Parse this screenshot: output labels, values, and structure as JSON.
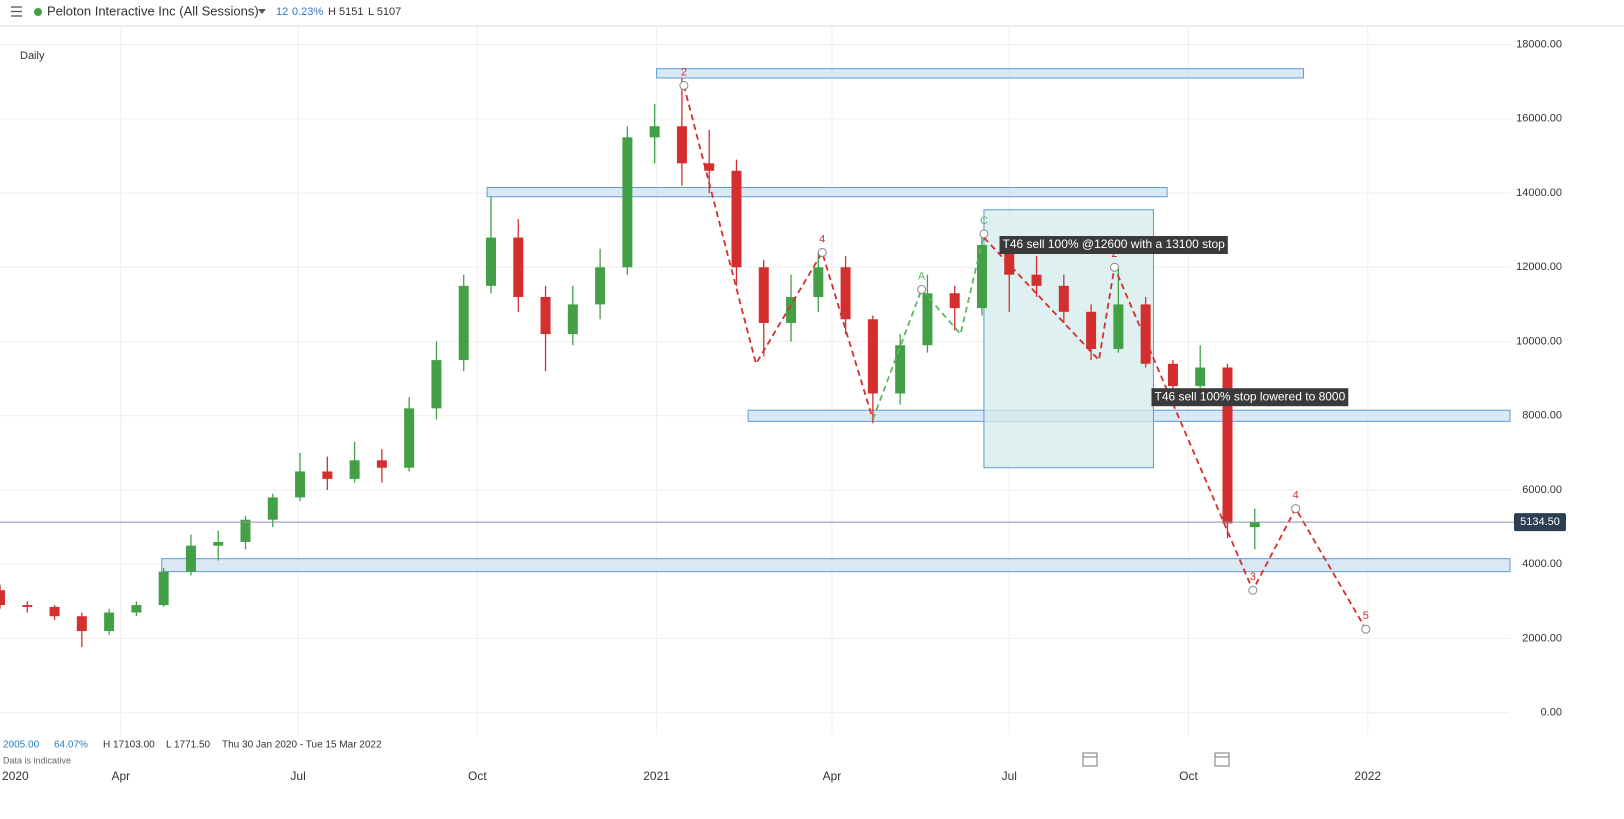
{
  "chart_data": {
    "type": "candlestick",
    "title": "Peloton Interactive Inc (All Sessions)",
    "header_stats": {
      "change": "12",
      "change_pct": "0.23%",
      "high": "H 5151",
      "low": "L 5107"
    },
    "interval": "Daily",
    "footer_stats": {
      "change": "2005.00",
      "change_pct": "64.07%",
      "high": "H 17103.00",
      "low": "L 1771.50",
      "range": "Thu 30 Jan 2020 - Tue 15 Mar 2022"
    },
    "disclaimer": "Data is indicative",
    "x": [
      "2020-01-30",
      "2020-02-13",
      "2020-02-27",
      "2020-03-12",
      "2020-03-26",
      "2020-04-09",
      "2020-04-23",
      "2020-05-07",
      "2020-05-21",
      "2020-06-04",
      "2020-06-18",
      "2020-07-02",
      "2020-07-16",
      "2020-07-30",
      "2020-08-13",
      "2020-08-27",
      "2020-09-10",
      "2020-09-24",
      "2020-10-08",
      "2020-10-22",
      "2020-11-05",
      "2020-11-19",
      "2020-12-03",
      "2020-12-17",
      "2020-12-31",
      "2021-01-14",
      "2021-01-28",
      "2021-02-11",
      "2021-02-25",
      "2021-03-11",
      "2021-03-25",
      "2021-04-08",
      "2021-04-22",
      "2021-05-06",
      "2021-05-20",
      "2021-06-03",
      "2021-06-17",
      "2021-07-01",
      "2021-07-15",
      "2021-07-29",
      "2021-08-12",
      "2021-08-26",
      "2021-09-09",
      "2021-09-23",
      "2021-10-07",
      "2021-10-21",
      "2021-11-04"
    ],
    "open": [
      3300,
      2900,
      2850,
      2600,
      2200,
      2700,
      2900,
      3800,
      4500,
      4600,
      5200,
      5800,
      6500,
      6300,
      6800,
      6600,
      8200,
      9500,
      11500,
      12800,
      11200,
      10200,
      11000,
      12000,
      15500,
      15800,
      14800,
      14600,
      12000,
      10500,
      11200,
      12000,
      10600,
      8600,
      9900,
      11300,
      10900,
      12600,
      11800,
      11500,
      10800,
      9800,
      11000,
      9400,
      8800,
      9300,
      5000
    ],
    "high": [
      3450,
      3000,
      2900,
      2700,
      2800,
      3000,
      3900,
      4800,
      4900,
      5300,
      5900,
      7000,
      6900,
      7300,
      7100,
      8500,
      10000,
      11800,
      13900,
      13300,
      11500,
      11500,
      12500,
      15800,
      16400,
      17100,
      15700,
      14900,
      12200,
      11800,
      12400,
      12300,
      10700,
      10200,
      11800,
      11500,
      12900,
      12700,
      12300,
      11800,
      11000,
      12000,
      11200,
      9500,
      9900,
      9400,
      5500
    ],
    "low": [
      2800,
      2700,
      2500,
      1770,
      2100,
      2600,
      2850,
      3700,
      4100,
      4400,
      5000,
      5700,
      6000,
      6200,
      6200,
      6500,
      7900,
      9200,
      11300,
      10800,
      9200,
      9900,
      10600,
      11800,
      14800,
      14200,
      14000,
      11500,
      9600,
      10000,
      10800,
      10200,
      7800,
      8300,
      9700,
      10300,
      10700,
      10800,
      11200,
      10500,
      9500,
      9700,
      9300,
      8300,
      8700,
      4700,
      4400
    ],
    "close": [
      2900,
      2850,
      2600,
      2200,
      2700,
      2900,
      3800,
      4500,
      4600,
      5200,
      5800,
      6500,
      6300,
      6800,
      6600,
      8200,
      9500,
      11500,
      12800,
      11200,
      10200,
      11000,
      12000,
      15500,
      15800,
      14800,
      14600,
      12000,
      10500,
      11200,
      12000,
      10600,
      8600,
      9900,
      11300,
      10900,
      12600,
      11800,
      11500,
      10800,
      9800,
      11000,
      9400,
      8800,
      9300,
      5100,
      5134.5
    ],
    "up_color": "#43a047",
    "down_color": "#d32f2f",
    "last_price": {
      "value": 5134.5,
      "label": "5134.50"
    },
    "xlim": [
      "2020-01-30",
      "2022-03-15"
    ],
    "xticks": [
      {
        "value": "2020-01-01",
        "label": "2020"
      },
      {
        "value": "2020-04-01",
        "label": "Apr"
      },
      {
        "value": "2020-07-01",
        "label": "Jul"
      },
      {
        "value": "2020-10-01",
        "label": "Oct"
      },
      {
        "value": "2021-01-01",
        "label": "2021"
      },
      {
        "value": "2021-04-01",
        "label": "Apr"
      },
      {
        "value": "2021-07-01",
        "label": "Jul"
      },
      {
        "value": "2021-10-01",
        "label": "Oct"
      },
      {
        "value": "2022-01-01",
        "label": "2022"
      }
    ],
    "ylim": [
      -600,
      18500
    ],
    "yticks": [
      {
        "value": 0,
        "label": "0.00"
      },
      {
        "value": 2000,
        "label": "2000.00"
      },
      {
        "value": 4000,
        "label": "4000.00"
      },
      {
        "value": 6000,
        "label": "6000.00"
      },
      {
        "value": 8000,
        "label": "8000.00"
      },
      {
        "value": 10000,
        "label": "10000.00"
      },
      {
        "value": 12000,
        "label": "12000.00"
      },
      {
        "value": 14000,
        "label": "14000.00"
      },
      {
        "value": 16000,
        "label": "16000.00"
      },
      {
        "value": 18000,
        "label": "18000.00"
      }
    ],
    "grid": true,
    "zones": [
      {
        "from": "2021-01-01",
        "to": "2021-11-29",
        "low": 17100,
        "high": 17350,
        "color": "#cfe2f3"
      },
      {
        "from": "2020-10-06",
        "to": "2021-09-20",
        "low": 13900,
        "high": 14150,
        "color": "#cfe2f3"
      },
      {
        "from": "2021-02-17",
        "to": "2022-03-15",
        "low": 7850,
        "high": 8150,
        "color": "#cfe2f3"
      },
      {
        "from": "2020-04-22",
        "to": "2022-03-15",
        "low": 3800,
        "high": 4150,
        "color": "#cfe2f3"
      },
      {
        "from": "2021-06-18",
        "to": "2021-09-13",
        "low": 6600,
        "high": 13550,
        "color": "#d3ebea"
      }
    ],
    "waves": [
      {
        "color": "#d32f2f",
        "points": [
          {
            "date": "2021-01-15",
            "price": 16900,
            "label": "2"
          },
          {
            "date": "2021-02-21",
            "price": 9400
          },
          {
            "date": "2021-03-27",
            "price": 12400,
            "label": "4"
          },
          {
            "date": "2021-04-22",
            "price": 7900
          }
        ]
      },
      {
        "color": "#5cb85c",
        "points": [
          {
            "date": "2021-04-22",
            "price": 7900
          },
          {
            "date": "2021-05-17",
            "price": 11400,
            "label": "A"
          },
          {
            "date": "2021-06-06",
            "price": 10200
          },
          {
            "date": "2021-06-18",
            "price": 12900,
            "label": "C"
          }
        ]
      },
      {
        "color": "#d32f2f",
        "points": [
          {
            "date": "2021-06-18",
            "price": 12800
          },
          {
            "date": "2021-08-16",
            "price": 9500
          },
          {
            "date": "2021-08-24",
            "price": 12000,
            "label": "2"
          },
          {
            "date": "2021-11-03",
            "price": 3300,
            "label": "3"
          },
          {
            "date": "2021-11-25",
            "price": 5500,
            "label": "4"
          },
          {
            "date": "2021-12-31",
            "price": 2250,
            "label": "5"
          }
        ]
      }
    ],
    "notes": [
      {
        "text": "T46 sell 100% @12600 with a 13100 stop",
        "date": "2021-06-26",
        "price": 12600
      },
      {
        "text": "T46 sell 100% stop lowered to 8000",
        "date": "2021-09-12",
        "price": 8500
      }
    ]
  }
}
